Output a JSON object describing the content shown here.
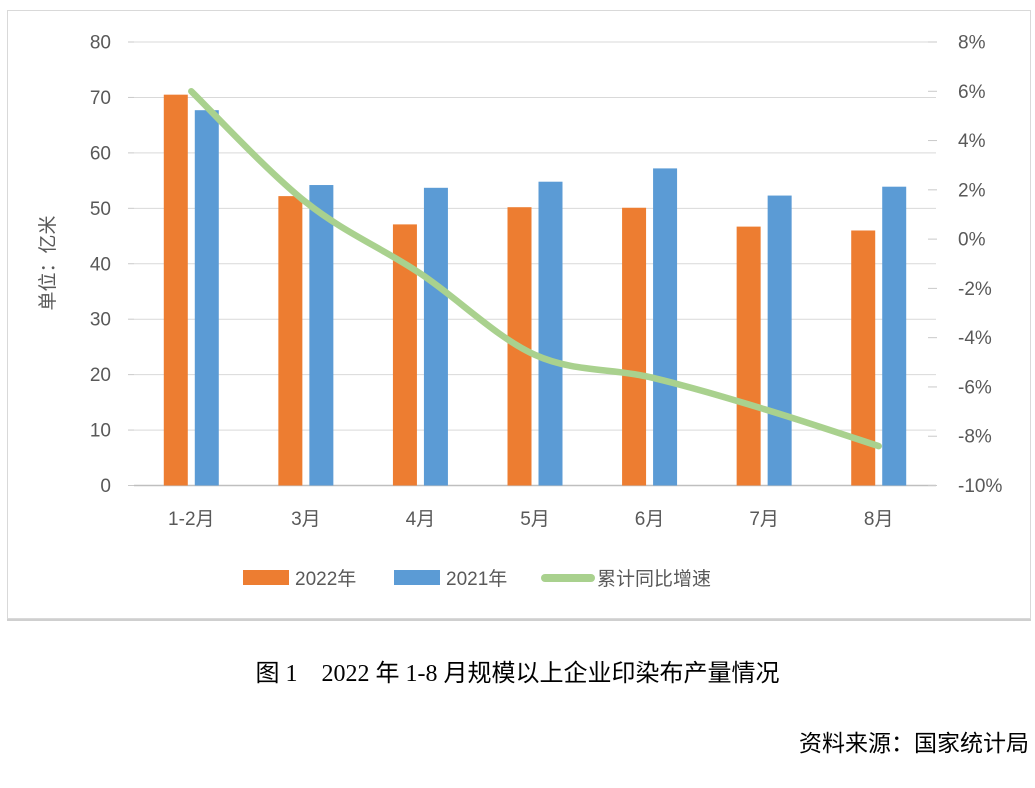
{
  "figure": {
    "caption": "图 1　2022 年 1-8 月规模以上企业印染布产量情况",
    "source": "资料来源：国家统计局"
  },
  "chart_data": {
    "type": "combo-bar-line",
    "categories": [
      "1-2月",
      "3月",
      "4月",
      "5月",
      "6月",
      "7月",
      "8月"
    ],
    "bar_series": [
      {
        "name": "2022年",
        "color": "#ED7D31",
        "values": [
          70.5,
          52.2,
          47.1,
          50.2,
          50.1,
          46.7,
          46.0
        ]
      },
      {
        "name": "2021年",
        "color": "#5B9BD5",
        "values": [
          67.7,
          54.2,
          53.7,
          54.8,
          57.2,
          52.3,
          53.9
        ]
      }
    ],
    "line_series": {
      "name": "累计同比增速",
      "color": "#A9D18E",
      "axis": "right",
      "values": [
        6.0,
        1.5,
        -1.4,
        -4.7,
        -5.6,
        -6.9,
        -8.4
      ],
      "smooth": true
    },
    "left_axis": {
      "title": "单位：亿米",
      "min": 0,
      "max": 80,
      "step": 10,
      "tick_labels": [
        "80",
        "70",
        "60",
        "50",
        "40",
        "30",
        "20",
        "10",
        "0"
      ]
    },
    "right_axis": {
      "min": -10,
      "max": 8,
      "step": 2,
      "tick_labels": [
        "8%",
        "6%",
        "4%",
        "2%",
        "0%",
        "-2%",
        "-4%",
        "-6%",
        "-8%",
        "-10%"
      ]
    },
    "legend_position": "bottom",
    "grid": true,
    "styles": {
      "grid_color": "#d9d9d9",
      "axis_line_color": "#bfbfbf",
      "tick_color": "#c9c9c9",
      "label_color": "#595959"
    }
  }
}
